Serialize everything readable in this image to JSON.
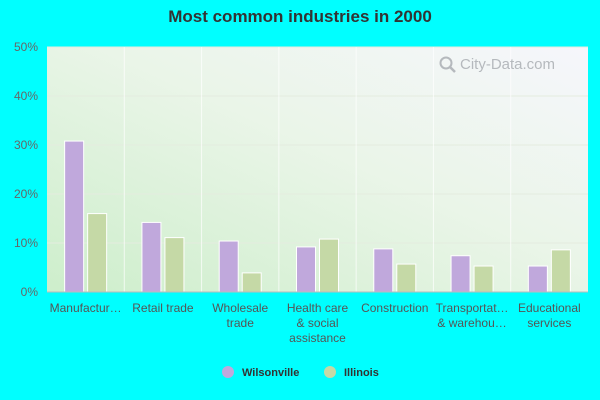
{
  "chart_data": {
    "type": "bar",
    "title": "Most common industries in 2000",
    "categories": [
      [
        "Manufactur…"
      ],
      [
        "Retail trade"
      ],
      [
        "Wholesale",
        "trade"
      ],
      [
        "Health care",
        "& social",
        "assistance"
      ],
      [
        "Construction"
      ],
      [
        "Transportat…",
        "& warehou…"
      ],
      [
        "Educational",
        "services"
      ]
    ],
    "series": [
      {
        "name": "Wilsonville",
        "color": "#c0a8dc",
        "values": [
          30.8,
          14.2,
          10.4,
          9.2,
          8.8,
          7.4,
          5.3
        ]
      },
      {
        "name": "Illinois",
        "color": "#c5d9a6",
        "values": [
          16.0,
          11.1,
          3.9,
          10.8,
          5.7,
          5.3,
          8.6
        ]
      }
    ],
    "yticks": [
      "0%",
      "10%",
      "20%",
      "30%",
      "40%",
      "50%"
    ],
    "ylim": [
      0,
      50
    ],
    "grid": true,
    "legend_position": "bottom"
  },
  "watermark": "City-Data.com"
}
